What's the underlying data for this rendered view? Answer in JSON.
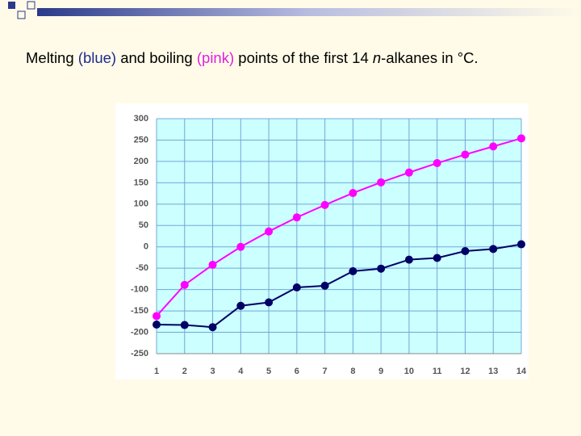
{
  "chart_data": {
    "type": "line",
    "title_parts": [
      "Melting ",
      "(blue)",
      " and boiling ",
      "(pink)",
      " points of the first 14 ",
      "n",
      "-alkanes in °C."
    ],
    "x": [
      1,
      2,
      3,
      4,
      5,
      6,
      7,
      8,
      9,
      10,
      11,
      12,
      13,
      14
    ],
    "series": [
      {
        "color": "#000066",
        "values": [
          -182,
          -183,
          -188,
          -138,
          -130,
          -95,
          -91,
          -57,
          -51,
          -30,
          -26,
          -10,
          -5,
          6
        ]
      },
      {
        "color": "#ff00ff",
        "values": [
          -162,
          -89,
          -42,
          0,
          36,
          69,
          98,
          126,
          151,
          174,
          196,
          216,
          235,
          254
        ]
      }
    ],
    "xlim": [
      1,
      14
    ],
    "xticks": [
      1,
      2,
      3,
      4,
      5,
      6,
      7,
      8,
      9,
      10,
      11,
      12,
      13,
      14
    ],
    "ylim": [
      -250,
      300
    ],
    "yticks": [
      -250,
      -200,
      -150,
      -100,
      -50,
      0,
      50,
      100,
      150,
      200,
      250,
      300
    ],
    "grid": true
  }
}
